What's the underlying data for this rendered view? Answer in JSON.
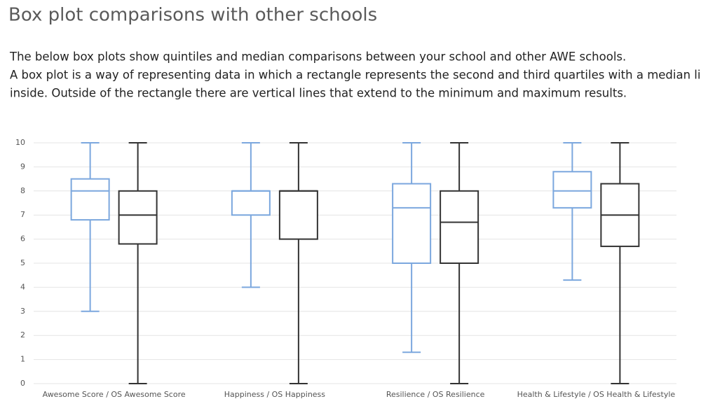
{
  "chart_data": {
    "type": "boxplot",
    "title": "Box plot comparisons with other schools",
    "description": [
      "The below box plots show quintiles and median comparisons between your school and other AWE schools.",
      "A box plot is a way of representing data in which a rectangle represents the second and third quartiles with a median line",
      "inside. Outside of the rectangle there are vertical lines that extend to the minimum and maximum results."
    ],
    "categories": [
      "Awesome Score / OS Awesome Score",
      "Happiness / OS Happiness",
      "Resilience / OS Resilience",
      "Health & Lifestyle / OS Health & Lifestyle"
    ],
    "series": [
      {
        "color": "#7ba7de",
        "min": [
          3.0,
          4.0,
          1.3,
          4.3
        ],
        "q1": [
          6.8,
          7.0,
          5.0,
          7.3
        ],
        "median": [
          8.0,
          8.0,
          7.3,
          8.0
        ],
        "q3": [
          8.5,
          8.0,
          8.3,
          8.8
        ],
        "max": [
          10,
          10,
          10,
          10
        ]
      },
      {
        "color": "#333333",
        "min": [
          0,
          0,
          0,
          0
        ],
        "q1": [
          5.8,
          6.0,
          5.0,
          5.7
        ],
        "median": [
          7.0,
          8.0,
          6.7,
          7.0
        ],
        "q3": [
          8.0,
          8.0,
          8.0,
          8.3
        ],
        "max": [
          10,
          10,
          10,
          10
        ]
      }
    ],
    "ylim": [
      0,
      10
    ],
    "yticks": [
      0,
      1,
      2,
      3,
      4,
      5,
      6,
      7,
      8,
      9,
      10
    ],
    "grid": true
  }
}
